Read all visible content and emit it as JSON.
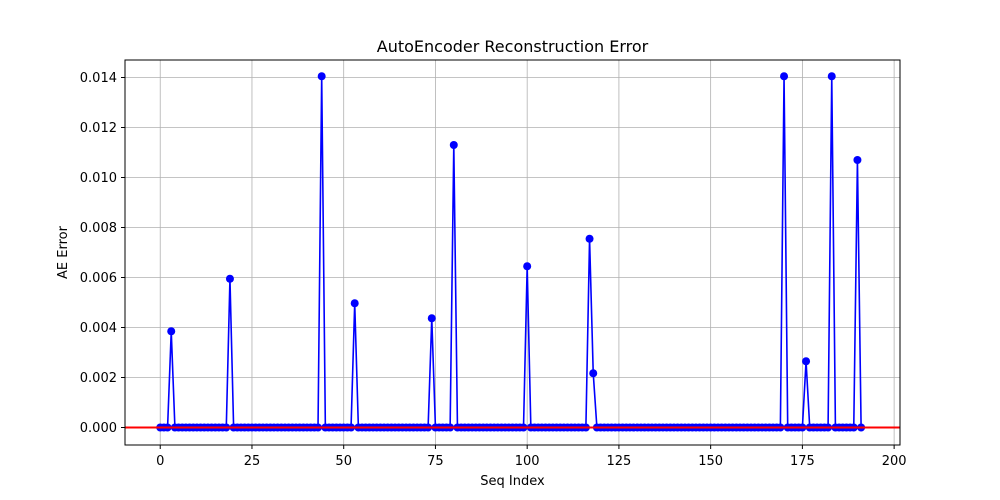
{
  "chart_data": {
    "type": "line",
    "title": "AutoEncoder Reconstruction Error",
    "xlabel": "Seq Index",
    "ylabel": "AE Error",
    "xlim": [
      -9.6,
      201.6
    ],
    "ylim": [
      -0.0007,
      0.0147
    ],
    "xticks": [
      0,
      25,
      50,
      75,
      100,
      125,
      150,
      175,
      200
    ],
    "yticks": [
      0.0,
      0.002,
      0.004,
      0.006,
      0.008,
      0.01,
      0.012,
      0.014
    ],
    "ytick_labels": [
      "0.000",
      "0.002",
      "0.004",
      "0.006",
      "0.008",
      "0.010",
      "0.012",
      "0.014"
    ],
    "grid": true,
    "line_color": "#0000ff",
    "marker_color": "#0000ff",
    "threshold_color": "#ff0000",
    "threshold": 0,
    "n_points": 192,
    "spikes": [
      {
        "x": 3,
        "y": 0.00385
      },
      {
        "x": 19,
        "y": 0.00595
      },
      {
        "x": 44,
        "y": 0.01405
      },
      {
        "x": 53,
        "y": 0.00497
      },
      {
        "x": 74,
        "y": 0.00437
      },
      {
        "x": 80,
        "y": 0.0113
      },
      {
        "x": 100,
        "y": 0.00645
      },
      {
        "x": 117,
        "y": 0.00755
      },
      {
        "x": 118,
        "y": 0.00217
      },
      {
        "x": 170,
        "y": 0.01405
      },
      {
        "x": 176,
        "y": 0.00265
      },
      {
        "x": 183,
        "y": 0.01405
      },
      {
        "x": 190,
        "y": 0.0107
      }
    ]
  }
}
